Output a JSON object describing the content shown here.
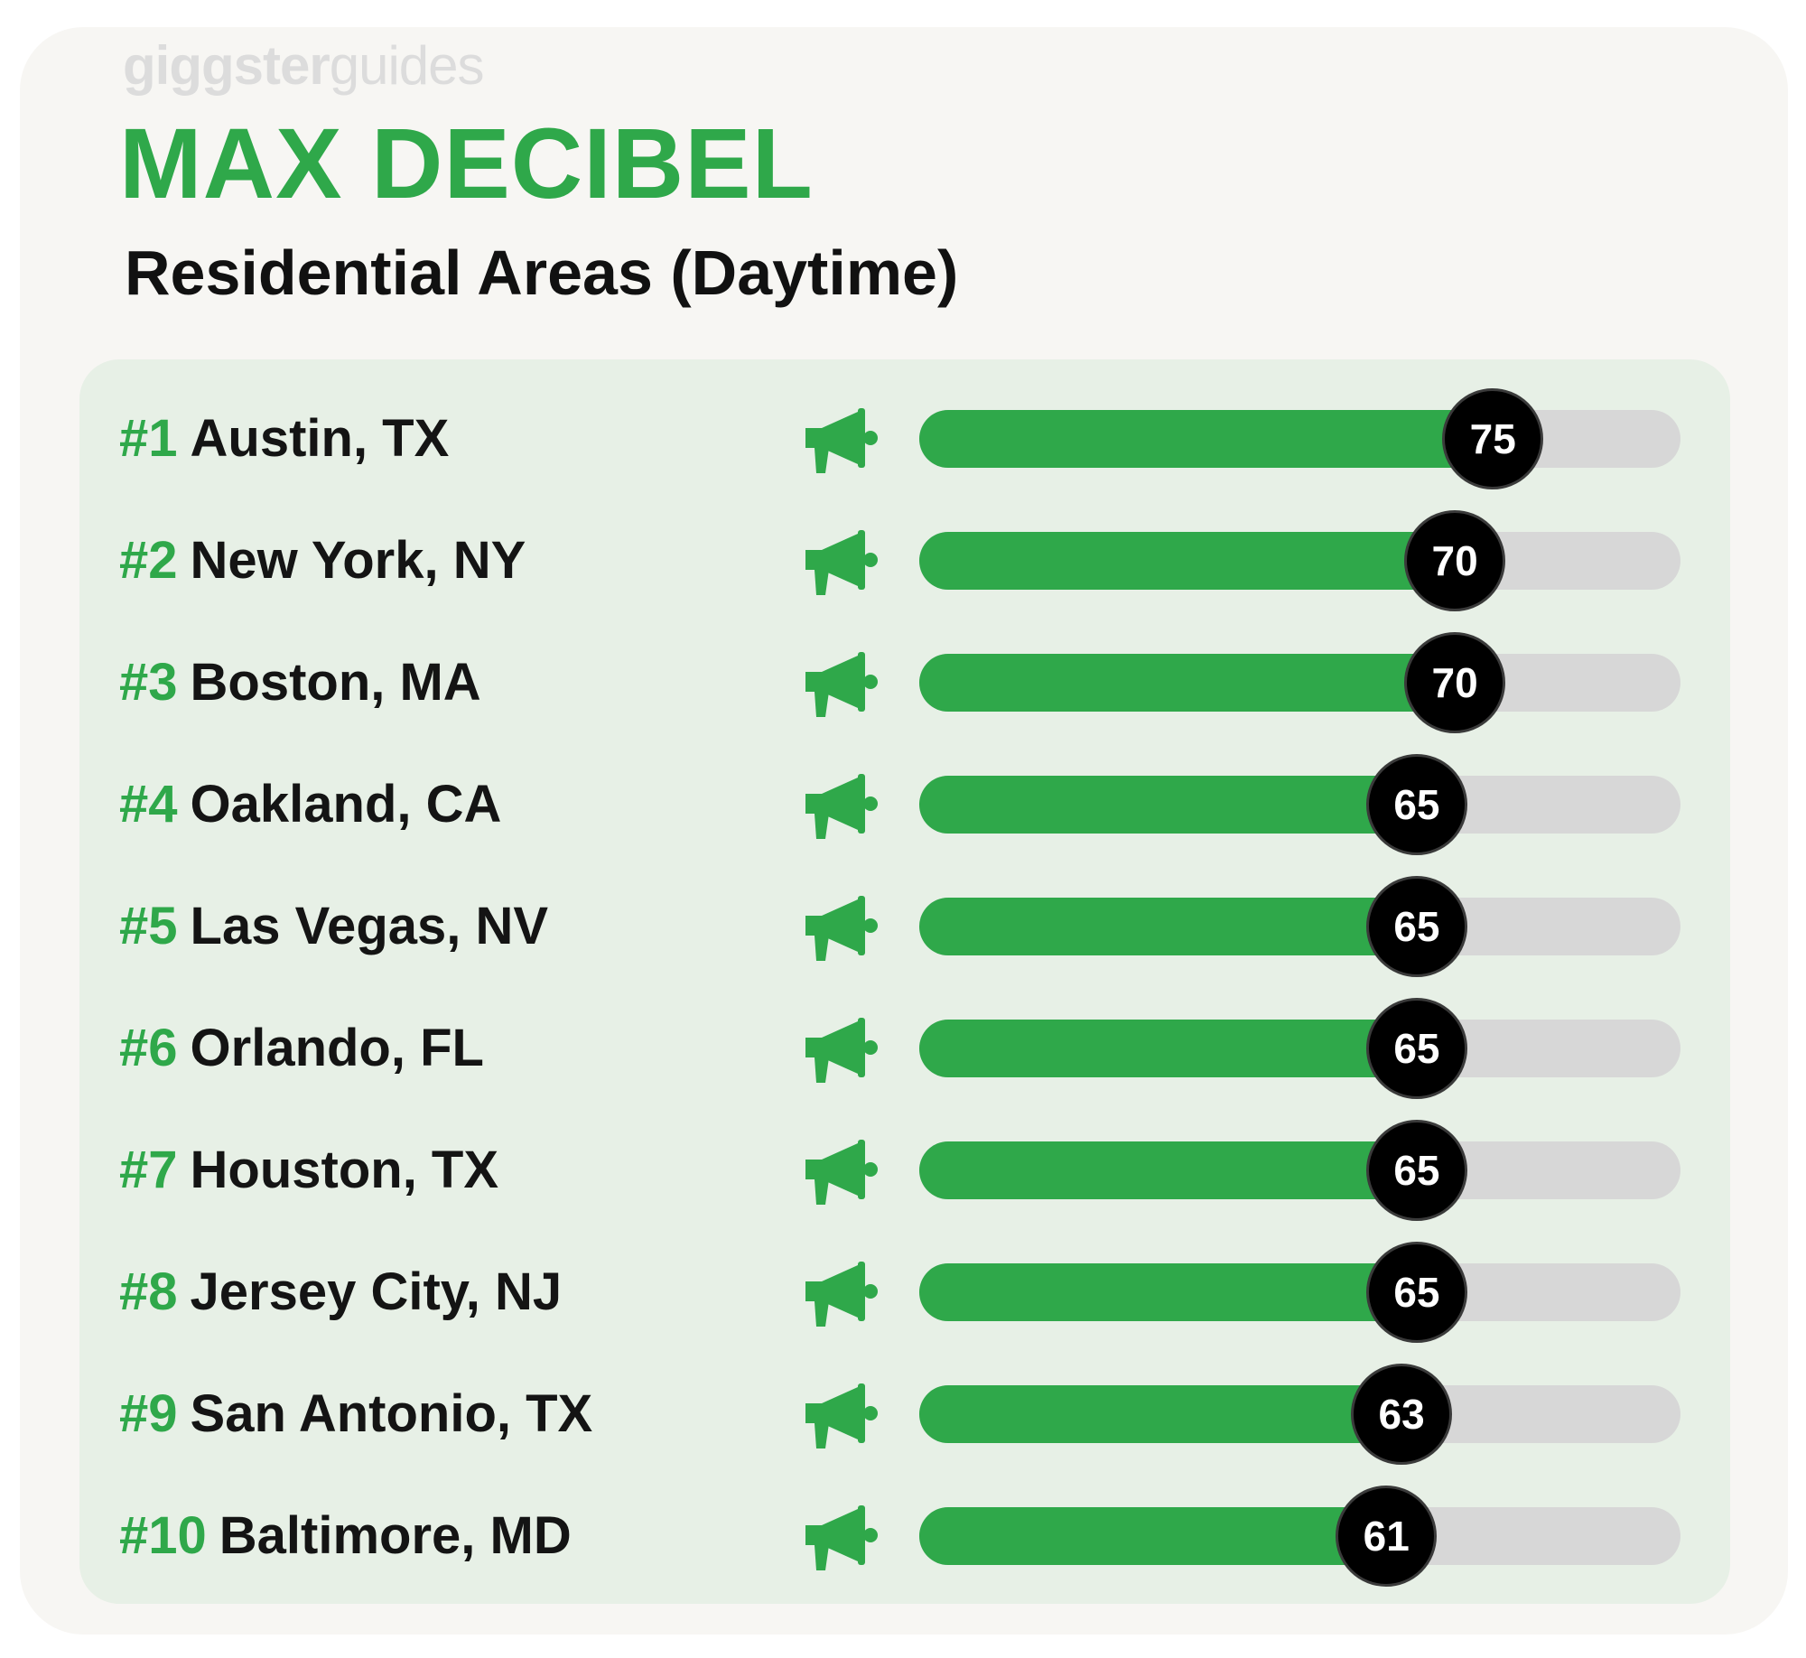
{
  "brand": {
    "bold": "giggster",
    "light": "guides"
  },
  "title": "MAX DECIBEL",
  "subtitle": "Residential Areas (Daytime)",
  "colors": {
    "accent_green": "#2fa84a",
    "panel_bg": "#e7f0e6",
    "track": "#d7d7d7",
    "badge": "#000000"
  },
  "icon": "megaphone-icon",
  "chart_data": {
    "type": "bar",
    "orientation": "horizontal",
    "title": "MAX DECIBEL",
    "subtitle": "Residential Areas (Daytime)",
    "xlim": [
      0,
      100
    ],
    "grid": false,
    "rows": [
      {
        "rank": "#1",
        "city": "Austin, TX",
        "value": 75
      },
      {
        "rank": "#2",
        "city": "New York, NY",
        "value": 70
      },
      {
        "rank": "#3",
        "city": "Boston, MA",
        "value": 70
      },
      {
        "rank": "#4",
        "city": "Oakland, CA",
        "value": 65
      },
      {
        "rank": "#5",
        "city": "Las Vegas, NV",
        "value": 65
      },
      {
        "rank": "#6",
        "city": "Orlando, FL",
        "value": 65
      },
      {
        "rank": "#7",
        "city": "Houston, TX",
        "value": 65
      },
      {
        "rank": "#8",
        "city": "Jersey City, NJ",
        "value": 65
      },
      {
        "rank": "#9",
        "city": "San Antonio, TX",
        "value": 63
      },
      {
        "rank": "#10",
        "city": "Baltimore, MD",
        "value": 61
      }
    ]
  }
}
